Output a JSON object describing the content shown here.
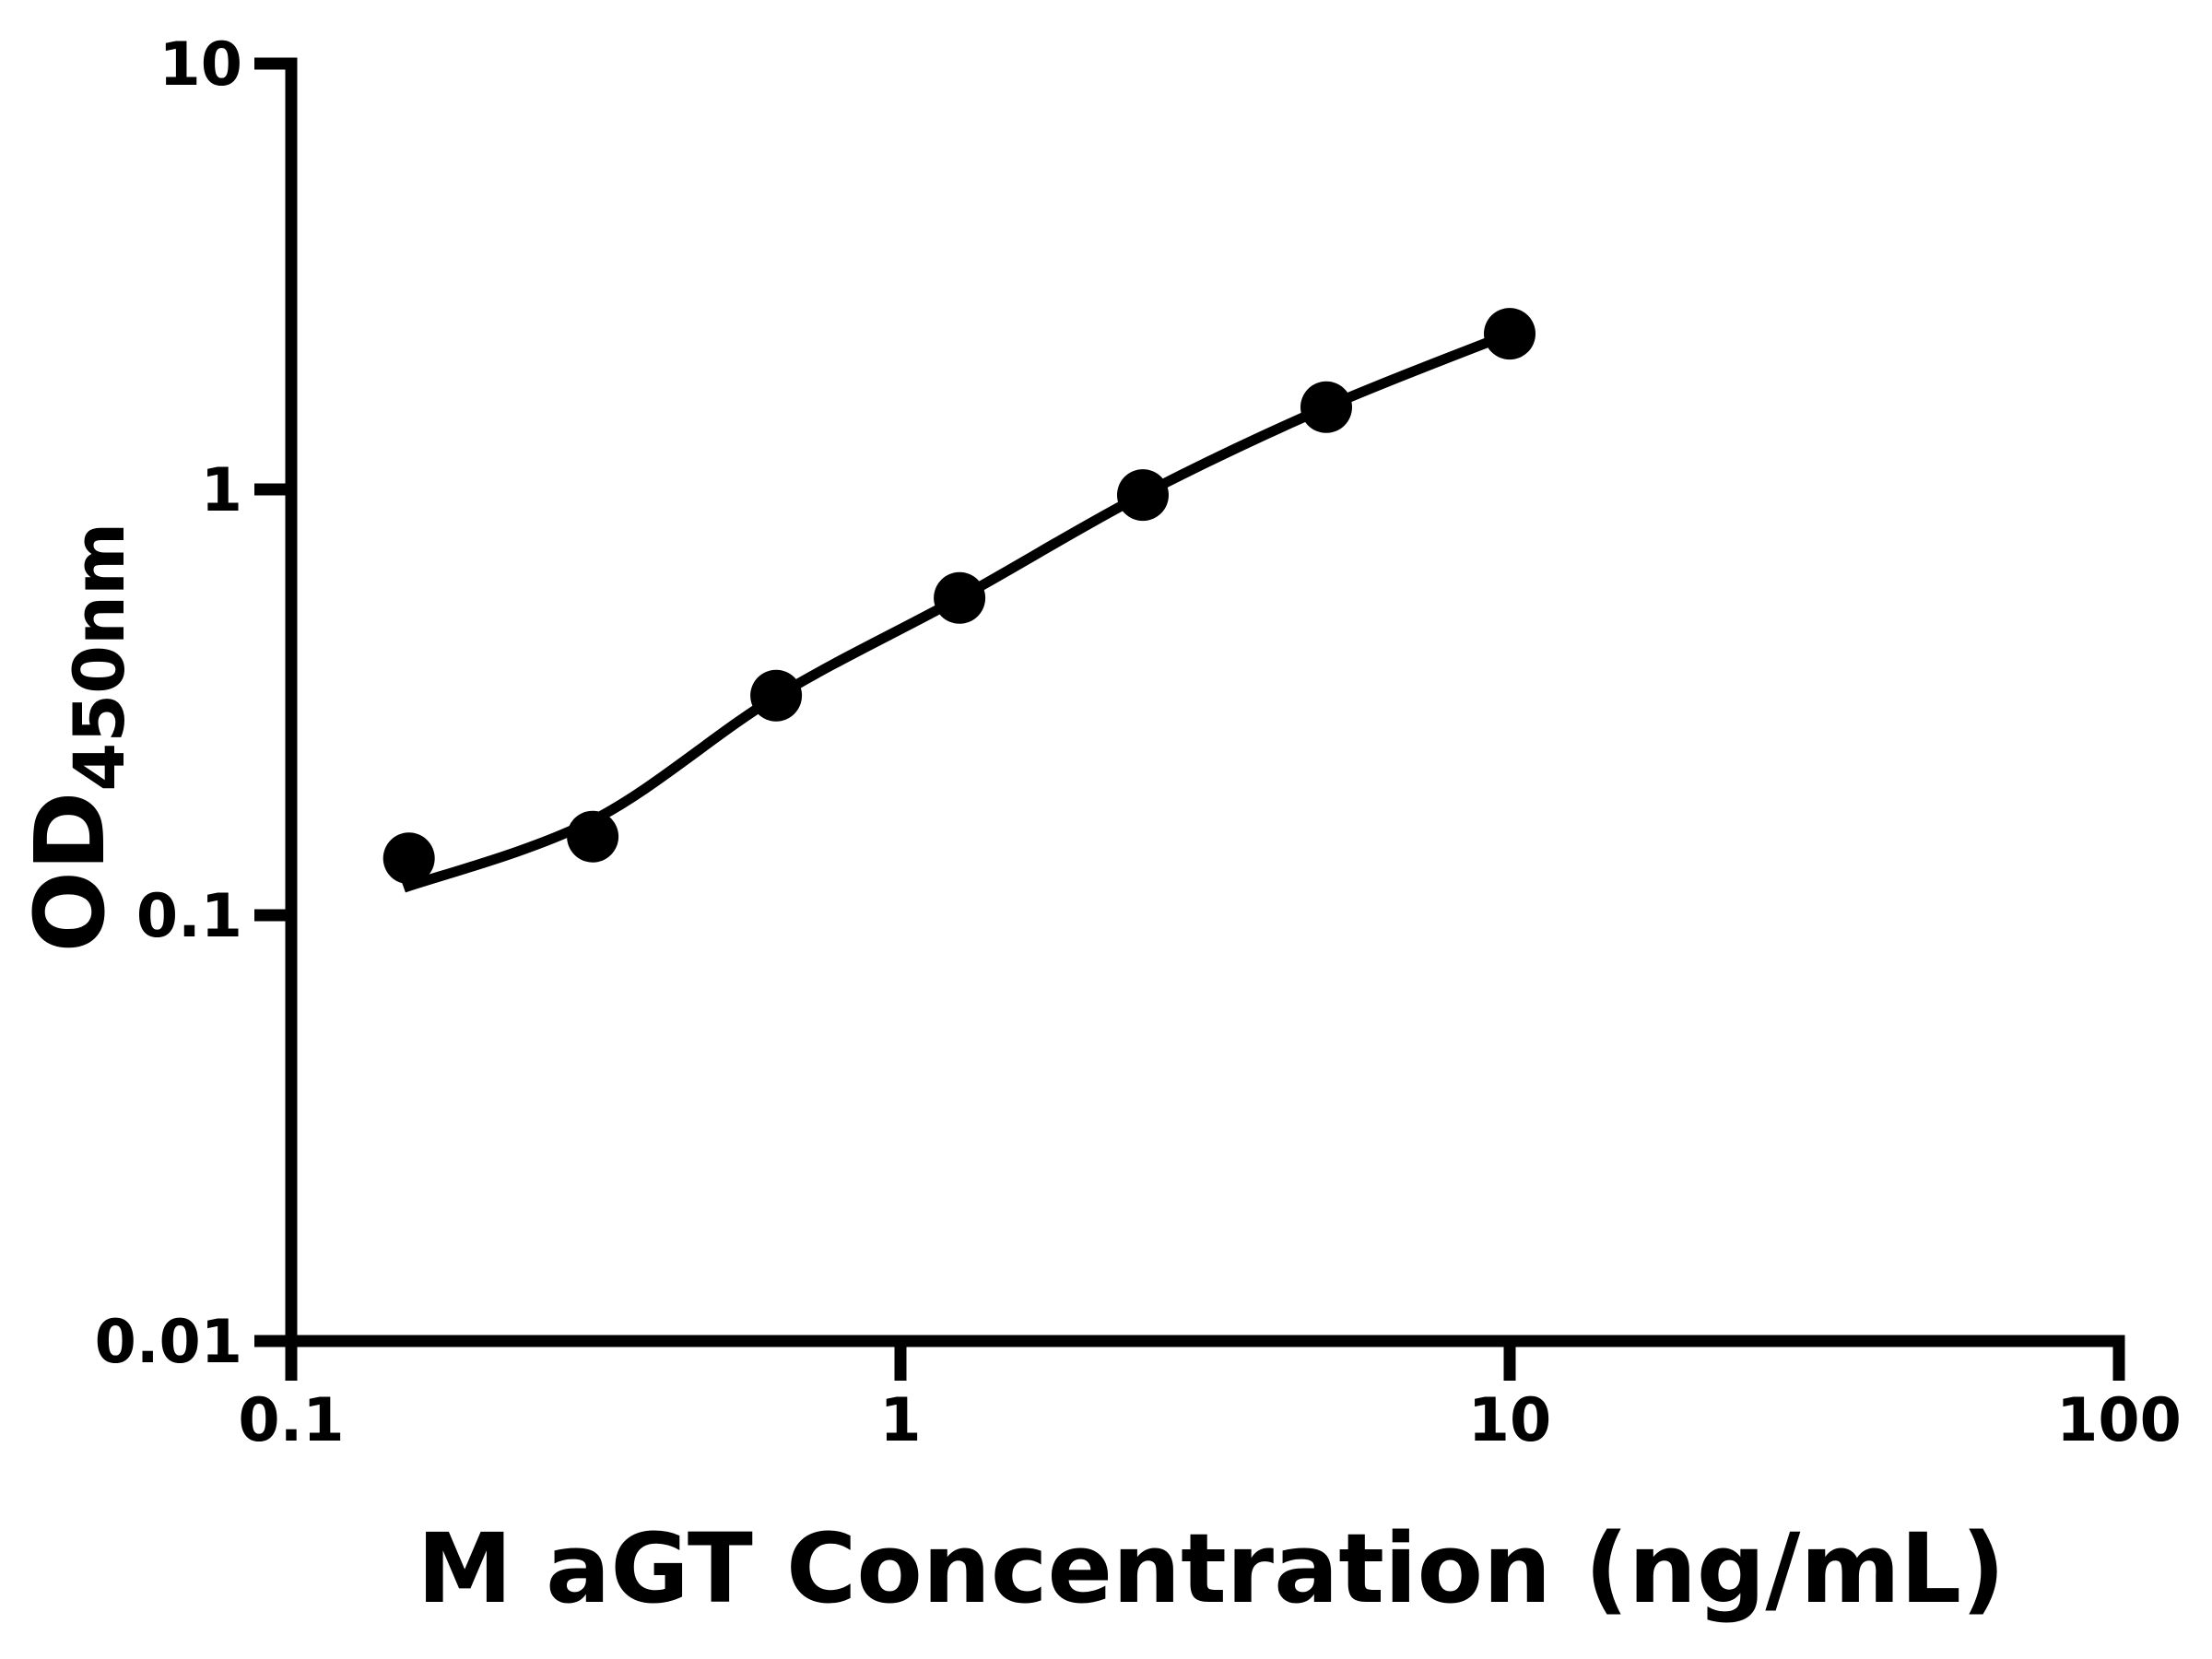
{
  "figure": {
    "background_color": "#ffffff",
    "foreground_color": "#000000"
  },
  "chart_data": {
    "type": "scatter",
    "title": "",
    "xlabel": "M aGT Concentration (ng/mL)",
    "ylabel_main": "OD",
    "ylabel_sub": "450nm",
    "x_scale": "log10",
    "y_scale": "log10",
    "xlim": [
      0.1,
      100
    ],
    "ylim": [
      0.01,
      10
    ],
    "grid": false,
    "legend_position": "none",
    "marker": "filled-circle",
    "marker_color": "#000000",
    "line_color": "#000000",
    "axis_color": "#000000",
    "x_ticks": [
      {
        "value": 0.1,
        "label": "0.1"
      },
      {
        "value": 1,
        "label": "1"
      },
      {
        "value": 10,
        "label": "10"
      },
      {
        "value": 100,
        "label": "100"
      }
    ],
    "y_ticks": [
      {
        "value": 0.01,
        "label": "0.01"
      },
      {
        "value": 0.1,
        "label": "0.1"
      },
      {
        "value": 1,
        "label": "1"
      },
      {
        "value": 10,
        "label": "10"
      }
    ],
    "points": [
      {
        "x": 0.156,
        "y": 0.136
      },
      {
        "x": 0.3125,
        "y": 0.153
      },
      {
        "x": 0.625,
        "y": 0.328
      },
      {
        "x": 1.25,
        "y": 0.556
      },
      {
        "x": 2.5,
        "y": 0.97
      },
      {
        "x": 5,
        "y": 1.56
      },
      {
        "x": 10,
        "y": 2.32
      }
    ],
    "fit_curve_points": [
      {
        "x": 0.153,
        "y": 0.116
      },
      {
        "x": 0.3125,
        "y": 0.167
      },
      {
        "x": 0.625,
        "y": 0.326
      },
      {
        "x": 1.25,
        "y": 0.556
      },
      {
        "x": 2.5,
        "y": 0.973
      },
      {
        "x": 5,
        "y": 1.56
      },
      {
        "x": 10,
        "y": 2.32
      }
    ]
  }
}
